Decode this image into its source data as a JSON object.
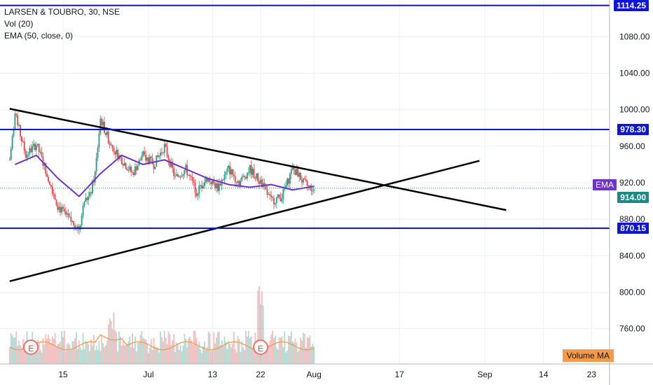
{
  "legend": {
    "symbol": "LARSEN & TOUBRO, 30, NSE",
    "volume": "Vol (20)",
    "ema": "EMA (50, close, 0)"
  },
  "price_axis": {
    "ticks": [
      "1080.00",
      "1040.00",
      "1000.00",
      "960.00",
      "920.00",
      "880.00",
      "840.00",
      "800.00",
      "760.00"
    ],
    "tick_values": [
      1080,
      1040,
      1000,
      960,
      920,
      880,
      840,
      800,
      760
    ],
    "range": [
      728,
      1118
    ]
  },
  "time_axis": {
    "labels": [
      "15",
      "Jul",
      "13",
      "22",
      "Aug",
      "17",
      "Sep",
      "14",
      "23"
    ],
    "day_values": [
      15,
      31,
      43,
      52,
      62,
      78,
      94,
      105,
      114
    ]
  },
  "levels": {
    "top": "1114.25",
    "top_value": 1114.25,
    "upper": "978.30",
    "upper_value": 978.3,
    "lower": "870.15",
    "lower_value": 870.15
  },
  "price_tag": {
    "label": "914.00",
    "value": 914.0
  },
  "ema_tag": {
    "label": "EMA"
  },
  "volume_ma_tag": {
    "label": "Volume MA"
  },
  "earnings_badges": [
    {
      "label": "E",
      "day": 9
    },
    {
      "label": "E",
      "day": 52
    }
  ],
  "colors": {
    "level_line": "#0f15d6",
    "trend_line": "#000000",
    "ema_line": "#6e34c8",
    "bull": "#2e9e87",
    "bear": "#e05050",
    "vol_ma": "#f39a4d",
    "last_price": "#1b8a86"
  },
  "chart_data": {
    "type": "candlestick",
    "title": "LARSEN & TOUBRO, 30, NSE",
    "series": [
      {
        "name": "EMA (50, close, 0)",
        "x": [
          6,
          10,
          14,
          18,
          22,
          26,
          30,
          34,
          38,
          42,
          46,
          50,
          54,
          58,
          62
        ],
        "values": [
          940,
          950,
          925,
          905,
          930,
          950,
          940,
          945,
          935,
          925,
          918,
          915,
          918,
          912,
          916
        ]
      },
      {
        "name": "Vol (20)",
        "x": [
          6,
          12,
          19,
          24,
          30,
          40,
          52,
          58,
          62
        ],
        "values": [
          0.3,
          0.35,
          0.25,
          0.6,
          0.3,
          0.3,
          1.0,
          0.3,
          0.2
        ]
      }
    ],
    "price_path": {
      "x": [
        5,
        6,
        8,
        10,
        12,
        14,
        16,
        18,
        19,
        20,
        21,
        22,
        24,
        26,
        28,
        30,
        32,
        34,
        36,
        38,
        40,
        42,
        44,
        46,
        48,
        50,
        52,
        54,
        56,
        58,
        59,
        60,
        61,
        62
      ],
      "values": [
        945,
        995,
        950,
        962,
        930,
        895,
        880,
        870,
        900,
        905,
        930,
        990,
        960,
        945,
        930,
        950,
        940,
        960,
        925,
        935,
        910,
        925,
        915,
        935,
        920,
        935,
        920,
        900,
        905,
        935,
        930,
        920,
        915,
        914
      ]
    },
    "trendlines": [
      {
        "name": "descending",
        "points": [
          [
            5,
            1001
          ],
          [
            98,
            890
          ]
        ]
      },
      {
        "name": "ascending",
        "points": [
          [
            5,
            812
          ],
          [
            93,
            944
          ]
        ]
      }
    ],
    "ylim": [
      728,
      1118
    ],
    "xlim": [
      5,
      118
    ]
  }
}
